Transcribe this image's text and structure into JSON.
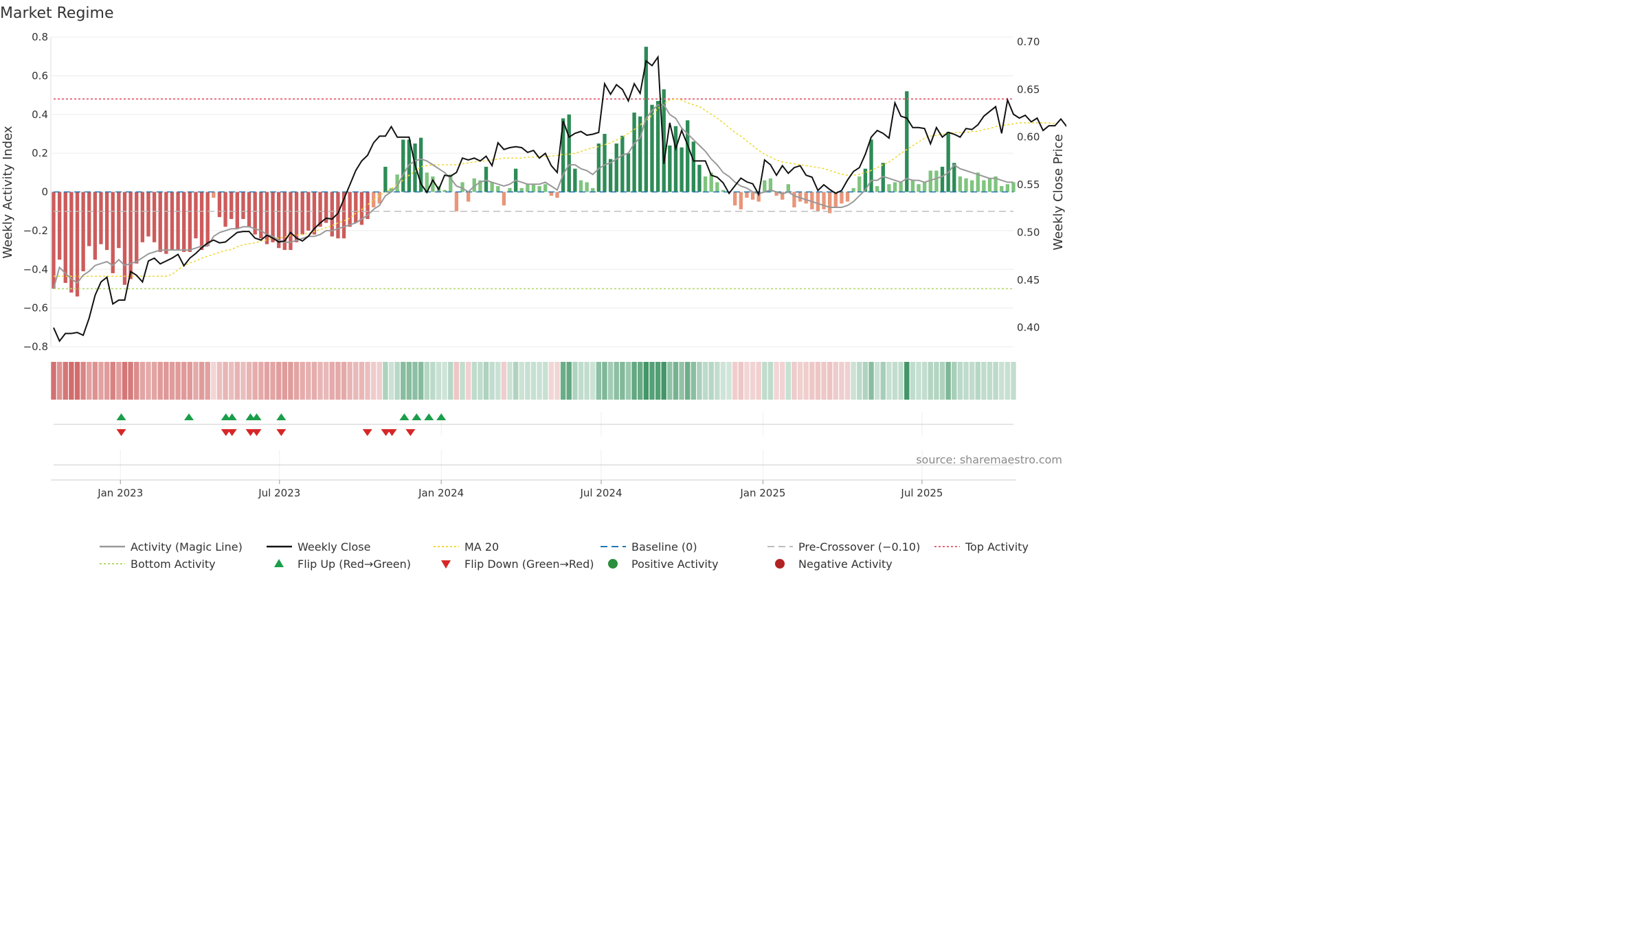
{
  "title": "Market Regime",
  "source": "source: sharemaestro.com",
  "chart_data": {
    "type": "bar",
    "title": "Market Regime",
    "ylabel": "Weekly Activity Index",
    "y2label": "Weekly Close Price",
    "ylim": [
      -0.8,
      0.8
    ],
    "y2lim": [
      0.38,
      0.705
    ],
    "yticks": [
      "0.8",
      "0.6",
      "0.4",
      "0.2",
      "0",
      "−0.2",
      "−0.4",
      "−0.6",
      "−0.8"
    ],
    "y2ticks": [
      "0.70",
      "0.65",
      "0.60",
      "0.55",
      "0.50",
      "0.45",
      "0.40"
    ],
    "xticks": [
      "Jan 2023",
      "Jul 2023",
      "Jan 2024",
      "Jul 2024",
      "Jan 2025",
      "Jul 2025"
    ],
    "x_range": [
      "2022-10-17",
      "2025-10-13"
    ],
    "reference_lines": {
      "top_activity": 0.48,
      "bottom_activity": -0.5,
      "pre_crossover": -0.1,
      "baseline": 0
    },
    "series": [
      {
        "name": "Activity",
        "values": [
          -0.5,
          -0.35,
          -0.47,
          -0.52,
          -0.54,
          -0.41,
          -0.28,
          -0.35,
          -0.27,
          -0.3,
          -0.42,
          -0.29,
          -0.48,
          -0.45,
          -0.37,
          -0.26,
          -0.23,
          -0.26,
          -0.31,
          -0.32,
          -0.3,
          -0.3,
          -0.31,
          -0.31,
          -0.24,
          -0.3,
          -0.28,
          -0.03,
          -0.13,
          -0.18,
          -0.14,
          -0.19,
          -0.14,
          -0.18,
          -0.22,
          -0.24,
          -0.27,
          -0.26,
          -0.29,
          -0.3,
          -0.3,
          -0.26,
          -0.22,
          -0.2,
          -0.22,
          -0.18,
          -0.16,
          -0.23,
          -0.24,
          -0.24,
          -0.18,
          -0.16,
          -0.17,
          -0.14,
          -0.08,
          -0.06,
          0.13,
          0.02,
          0.09,
          0.27,
          0.27,
          0.25,
          0.28,
          0.1,
          0.08,
          0.03,
          0.01,
          0.09,
          -0.1,
          0.05,
          -0.05,
          0.07,
          0.06,
          0.13,
          0.05,
          0.03,
          -0.07,
          0.02,
          0.12,
          0.02,
          0.04,
          0.04,
          0.03,
          0.04,
          -0.02,
          -0.03,
          0.38,
          0.4,
          0.12,
          0.06,
          0.05,
          0.02,
          0.25,
          0.3,
          0.17,
          0.25,
          0.29,
          0.2,
          0.41,
          0.39,
          0.75,
          0.45,
          0.47,
          0.53,
          0.24,
          0.34,
          0.23,
          0.37,
          0.26,
          0.14,
          0.08,
          0.1,
          0.05,
          0.01,
          0.0,
          -0.07,
          -0.09,
          -0.03,
          -0.04,
          -0.05,
          0.06,
          0.07,
          -0.02,
          -0.04,
          0.04,
          -0.08,
          -0.05,
          -0.06,
          -0.09,
          -0.1,
          -0.09,
          -0.11,
          -0.08,
          -0.06,
          -0.05,
          0.02,
          0.08,
          0.12,
          0.27,
          0.03,
          0.15,
          0.04,
          0.05,
          0.05,
          0.52,
          0.06,
          0.04,
          0.05,
          0.11,
          0.11,
          0.13,
          0.31,
          0.15,
          0.08,
          0.07,
          0.06,
          0.1,
          0.06,
          0.07,
          0.08,
          0.03,
          0.04,
          0.05
        ]
      },
      {
        "name": "Activity (Magic Line)",
        "values": [
          -0.5,
          -0.39,
          -0.42,
          -0.45,
          -0.47,
          -0.43,
          -0.41,
          -0.38,
          -0.37,
          -0.36,
          -0.38,
          -0.35,
          -0.38,
          -0.37,
          -0.36,
          -0.34,
          -0.32,
          -0.31,
          -0.3,
          -0.3,
          -0.3,
          -0.3,
          -0.3,
          -0.3,
          -0.29,
          -0.28,
          -0.28,
          -0.23,
          -0.21,
          -0.2,
          -0.19,
          -0.19,
          -0.18,
          -0.18,
          -0.19,
          -0.2,
          -0.22,
          -0.23,
          -0.25,
          -0.26,
          -0.26,
          -0.25,
          -0.24,
          -0.23,
          -0.23,
          -0.22,
          -0.2,
          -0.2,
          -0.19,
          -0.18,
          -0.17,
          -0.16,
          -0.14,
          -0.12,
          -0.09,
          -0.07,
          -0.02,
          0.0,
          0.03,
          0.09,
          0.14,
          0.16,
          0.17,
          0.16,
          0.14,
          0.12,
          0.1,
          0.07,
          0.03,
          0.02,
          0.0,
          0.03,
          0.05,
          0.06,
          0.05,
          0.04,
          0.03,
          0.04,
          0.06,
          0.05,
          0.04,
          0.04,
          0.04,
          0.05,
          0.03,
          0.01,
          0.09,
          0.14,
          0.14,
          0.12,
          0.11,
          0.09,
          0.12,
          0.14,
          0.15,
          0.17,
          0.19,
          0.2,
          0.25,
          0.28,
          0.38,
          0.42,
          0.45,
          0.45,
          0.4,
          0.38,
          0.33,
          0.3,
          0.27,
          0.24,
          0.21,
          0.17,
          0.14,
          0.1,
          0.08,
          0.05,
          0.03,
          0.02,
          0.0,
          -0.01,
          0.0,
          0.01,
          0.0,
          -0.01,
          0.0,
          -0.02,
          -0.03,
          -0.04,
          -0.05,
          -0.06,
          -0.07,
          -0.08,
          -0.08,
          -0.08,
          -0.07,
          -0.05,
          -0.02,
          0.01,
          0.06,
          0.06,
          0.08,
          0.07,
          0.06,
          0.05,
          0.07,
          0.06,
          0.06,
          0.05,
          0.06,
          0.07,
          0.08,
          0.1,
          0.14,
          0.12,
          0.11,
          0.1,
          0.09,
          0.08,
          0.07,
          0.07,
          0.06,
          0.05,
          0.05
        ]
      },
      {
        "name": "Weekly Close",
        "values": [
          0.4,
          0.386,
          0.394,
          0.394,
          0.395,
          0.392,
          0.41,
          0.434,
          0.448,
          0.453,
          0.425,
          0.429,
          0.429,
          0.459,
          0.455,
          0.448,
          0.47,
          0.473,
          0.467,
          0.47,
          0.473,
          0.477,
          0.465,
          0.473,
          0.478,
          0.484,
          0.489,
          0.492,
          0.489,
          0.49,
          0.495,
          0.5,
          0.501,
          0.501,
          0.494,
          0.492,
          0.497,
          0.494,
          0.49,
          0.491,
          0.5,
          0.494,
          0.491,
          0.496,
          0.504,
          0.51,
          0.515,
          0.514,
          0.52,
          0.535,
          0.55,
          0.565,
          0.575,
          0.581,
          0.594,
          0.601,
          0.601,
          0.611,
          0.6,
          0.6,
          0.6,
          0.571,
          0.551,
          0.542,
          0.555,
          0.545,
          0.56,
          0.559,
          0.563,
          0.578,
          0.576,
          0.578,
          0.575,
          0.58,
          0.57,
          0.594,
          0.587,
          0.589,
          0.59,
          0.589,
          0.584,
          0.586,
          0.578,
          0.583,
          0.57,
          0.563,
          0.617,
          0.6,
          0.604,
          0.606,
          0.602,
          0.603,
          0.605,
          0.656,
          0.645,
          0.655,
          0.65,
          0.638,
          0.656,
          0.646,
          0.68,
          0.675,
          0.684,
          0.572,
          0.615,
          0.588,
          0.607,
          0.592,
          0.575,
          0.575,
          0.575,
          0.56,
          0.558,
          0.552,
          0.541,
          0.549,
          0.557,
          0.553,
          0.551,
          0.54,
          0.576,
          0.571,
          0.56,
          0.57,
          0.562,
          0.568,
          0.57,
          0.56,
          0.558,
          0.544,
          0.55,
          0.545,
          0.541,
          0.544,
          0.555,
          0.564,
          0.568,
          0.582,
          0.6,
          0.607,
          0.604,
          0.599,
          0.636,
          0.622,
          0.62,
          0.61,
          0.61,
          0.609,
          0.593,
          0.61,
          0.6,
          0.605,
          0.603,
          0.6,
          0.609,
          0.608,
          0.613,
          0.622,
          0.627,
          0.632,
          0.604,
          0.639,
          0.624,
          0.62,
          0.623,
          0.616,
          0.62,
          0.607,
          0.612,
          0.612,
          0.619,
          0.611
        ]
      },
      {
        "name": "MA 20",
        "values": [
          0.454,
          0.454,
          0.454,
          0.454,
          0.454,
          0.454,
          0.454,
          0.454,
          0.454,
          0.454,
          0.454,
          0.454,
          0.454,
          0.454,
          0.454,
          0.454,
          0.454,
          0.454,
          0.454,
          0.454,
          0.456,
          0.461,
          0.465,
          0.468,
          0.47,
          0.473,
          0.475,
          0.477,
          0.479,
          0.481,
          0.482,
          0.485,
          0.487,
          0.488,
          0.489,
          0.491,
          0.492,
          0.494,
          0.494,
          0.495,
          0.497,
          0.497,
          0.498,
          0.499,
          0.501,
          0.503,
          0.505,
          0.507,
          0.51,
          0.512,
          0.515,
          0.52,
          0.524,
          0.529,
          0.534,
          0.539,
          0.542,
          0.546,
          0.55,
          0.555,
          0.56,
          0.564,
          0.569,
          0.57,
          0.571,
          0.571,
          0.571,
          0.571,
          0.571,
          0.572,
          0.573,
          0.574,
          0.575,
          0.575,
          0.576,
          0.577,
          0.578,
          0.578,
          0.578,
          0.578,
          0.579,
          0.579,
          0.58,
          0.58,
          0.58,
          0.581,
          0.582,
          0.582,
          0.583,
          0.585,
          0.587,
          0.589,
          0.59,
          0.592,
          0.594,
          0.597,
          0.6,
          0.604,
          0.608,
          0.613,
          0.617,
          0.623,
          0.63,
          0.635,
          0.639,
          0.64,
          0.639,
          0.636,
          0.634,
          0.632,
          0.628,
          0.624,
          0.62,
          0.615,
          0.61,
          0.605,
          0.601,
          0.596,
          0.591,
          0.586,
          0.582,
          0.579,
          0.576,
          0.574,
          0.573,
          0.572,
          0.571,
          0.57,
          0.569,
          0.568,
          0.567,
          0.565,
          0.563,
          0.561,
          0.56,
          0.56,
          0.561,
          0.563,
          0.565,
          0.568,
          0.571,
          0.574,
          0.578,
          0.583,
          0.587,
          0.591,
          0.595,
          0.599,
          0.601,
          0.602,
          0.603,
          0.604,
          0.605,
          0.605,
          0.605,
          0.606,
          0.606,
          0.608,
          0.609,
          0.611,
          0.612,
          0.613,
          0.614,
          0.615,
          0.615,
          0.615,
          0.615,
          0.615,
          0.615,
          0.614
        ]
      }
    ],
    "flip_up_weeks": [
      11,
      22,
      28,
      29,
      32,
      33,
      37,
      57,
      59,
      61,
      63
    ],
    "flip_down_weeks": [
      11,
      28,
      29,
      32,
      33,
      37,
      51,
      54,
      55,
      58
    ],
    "legend_position": "bottom",
    "legend": [
      "Activity (Magic Line)",
      "Weekly Close",
      "MA 20",
      "Baseline (0)",
      "Pre-Crossover (−0.10)",
      "Top Activity",
      "Bottom Activity",
      "Flip Up (Red→Green)",
      "Flip Down (Green→Red)",
      "Positive Activity",
      "Negative Activity"
    ],
    "colors": {
      "positive_strong": "#2e8b57",
      "positive_light": "#7fc47f",
      "negative_strong": "#cd5c5c",
      "negative_light": "#e9967a",
      "magic_line": "#999999",
      "weekly_close": "#111111",
      "ma20": "#f0d93a",
      "baseline": "#1f77b4",
      "pre_crossover": "#bbbbbb",
      "top_activity": "#e8647a",
      "bottom_activity": "#b5d96b",
      "flip_up": "#1a9e4a",
      "flip_down": "#d62728",
      "positive_dot": "#2a8f3a",
      "negative_dot": "#b22222"
    }
  }
}
